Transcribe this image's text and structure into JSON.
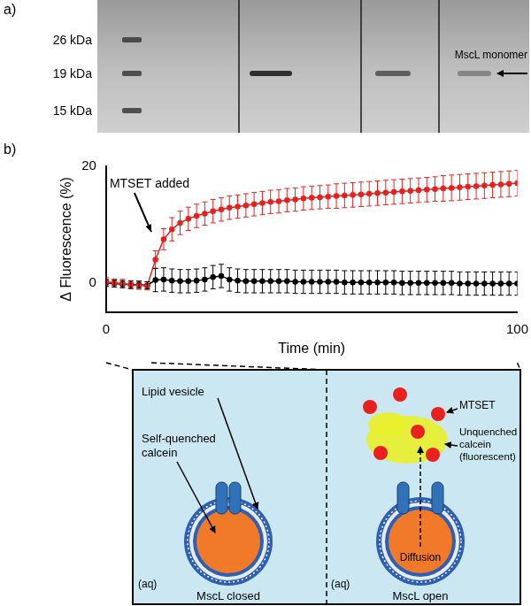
{
  "panel_labels": [
    "a)",
    "b)"
  ],
  "gel": {
    "ladder": [
      "26 kDa",
      "19 kDa",
      "15 kDa"
    ],
    "band_label": "MscL monomer"
  },
  "chart_data": {
    "type": "line",
    "x_label": "Time (min)",
    "y_label": "Δ Fluorescence (%)",
    "x": [
      0,
      2,
      4,
      6,
      8,
      10,
      12,
      14,
      16,
      18,
      20,
      22,
      24,
      26,
      28,
      30,
      32,
      34,
      36,
      38,
      40,
      42,
      44,
      46,
      48,
      50,
      52,
      54,
      56,
      58,
      60,
      62,
      64,
      66,
      68,
      70,
      72,
      74,
      76,
      78,
      80,
      82,
      84,
      86,
      88,
      90,
      92,
      94,
      96,
      98,
      100
    ],
    "xlim": [
      0,
      100
    ],
    "xticks": [
      0,
      100
    ],
    "ylim": [
      -5,
      20
    ],
    "yticks": [
      0,
      20
    ],
    "grid": false,
    "annotations": [
      {
        "text": "MTSET added",
        "x": 11
      }
    ],
    "series": [
      {
        "color": "#e8201e",
        "marker": "circle",
        "values": [
          0.2,
          0,
          -0.1,
          -0.3,
          -0.4,
          -0.5,
          4.0,
          7.5,
          9.2,
          10.3,
          11.0,
          11.5,
          11.9,
          12.3,
          12.6,
          12.9,
          13.1,
          13.3,
          13.5,
          13.7,
          13.9,
          14.0,
          14.2,
          14.3,
          14.5,
          14.6,
          14.7,
          14.8,
          14.9,
          15.0,
          15.1,
          15.2,
          15.3,
          15.4,
          15.5,
          15.6,
          15.7,
          15.8,
          15.9,
          16.0,
          16.1,
          16.2,
          16.3,
          16.4,
          16.5,
          16.6,
          16.7,
          16.8,
          16.9,
          17.0,
          17.1
        ],
        "errors": [
          0.7,
          0.7,
          0.7,
          0.7,
          0.7,
          0.7,
          1.5,
          1.8,
          2.0,
          2.0,
          2.0,
          2.0,
          2.0,
          2.0,
          2.0,
          2.0,
          2.0,
          2.0,
          2.0,
          2.0,
          2.0,
          2.0,
          2.0,
          2.0,
          2.0,
          2.0,
          2.0,
          2.0,
          2.1,
          2.1,
          2.1,
          2.1,
          2.1,
          2.1,
          2.1,
          2.1,
          2.1,
          2.1,
          2.1,
          2.1,
          2.1,
          2.2,
          2.2,
          2.2,
          2.2,
          2.2,
          2.2,
          2.2,
          2.2,
          2.2,
          2.2
        ]
      },
      {
        "color": "#000000",
        "marker": "circle",
        "values": [
          0,
          -0.1,
          -0.2,
          -0.3,
          -0.3,
          -0.4,
          0.5,
          0.6,
          0.4,
          0.3,
          0.3,
          0.4,
          0.6,
          1.0,
          1.2,
          0.6,
          0.4,
          0.3,
          0.3,
          0.3,
          0.3,
          0.3,
          0.3,
          0.2,
          0.2,
          0.2,
          0.2,
          0.2,
          0.2,
          0.1,
          0.1,
          0.1,
          0.1,
          0.1,
          0.1,
          0.1,
          0,
          0,
          0,
          0,
          0,
          0,
          0,
          -0.1,
          -0.1,
          -0.1,
          -0.1,
          -0.1,
          -0.1,
          -0.1,
          -0.1
        ],
        "errors": [
          0.6,
          0.6,
          0.6,
          0.6,
          0.6,
          0.6,
          2.0,
          2.0,
          2.0,
          2.0,
          2.0,
          2.0,
          2.0,
          2.0,
          2.0,
          2.0,
          2.0,
          2.0,
          2.0,
          2.0,
          2.0,
          2.0,
          2.0,
          2.0,
          2.0,
          2.0,
          2.0,
          2.0,
          2.0,
          2.0,
          2.0,
          2.0,
          2.0,
          2.0,
          2.0,
          2.0,
          2.0,
          2.0,
          2.0,
          2.0,
          2.0,
          2.0,
          2.0,
          2.0,
          2.0,
          2.0,
          2.0,
          2.0,
          2.0,
          2.0,
          2.0
        ]
      }
    ]
  },
  "diagram": {
    "lipid_vesicle": "Lipid vesicle",
    "self_quenched_calcein": "Self-quenched calcein",
    "mtset": "MTSET",
    "unquenched_calcein": "Unquenched calcein (fluorescent)",
    "diffusion": "Diffusion",
    "panels": [
      {
        "medium": "(aq)",
        "caption": "MscL closed"
      },
      {
        "medium": "(aq)",
        "caption": "MscL open"
      }
    ]
  }
}
